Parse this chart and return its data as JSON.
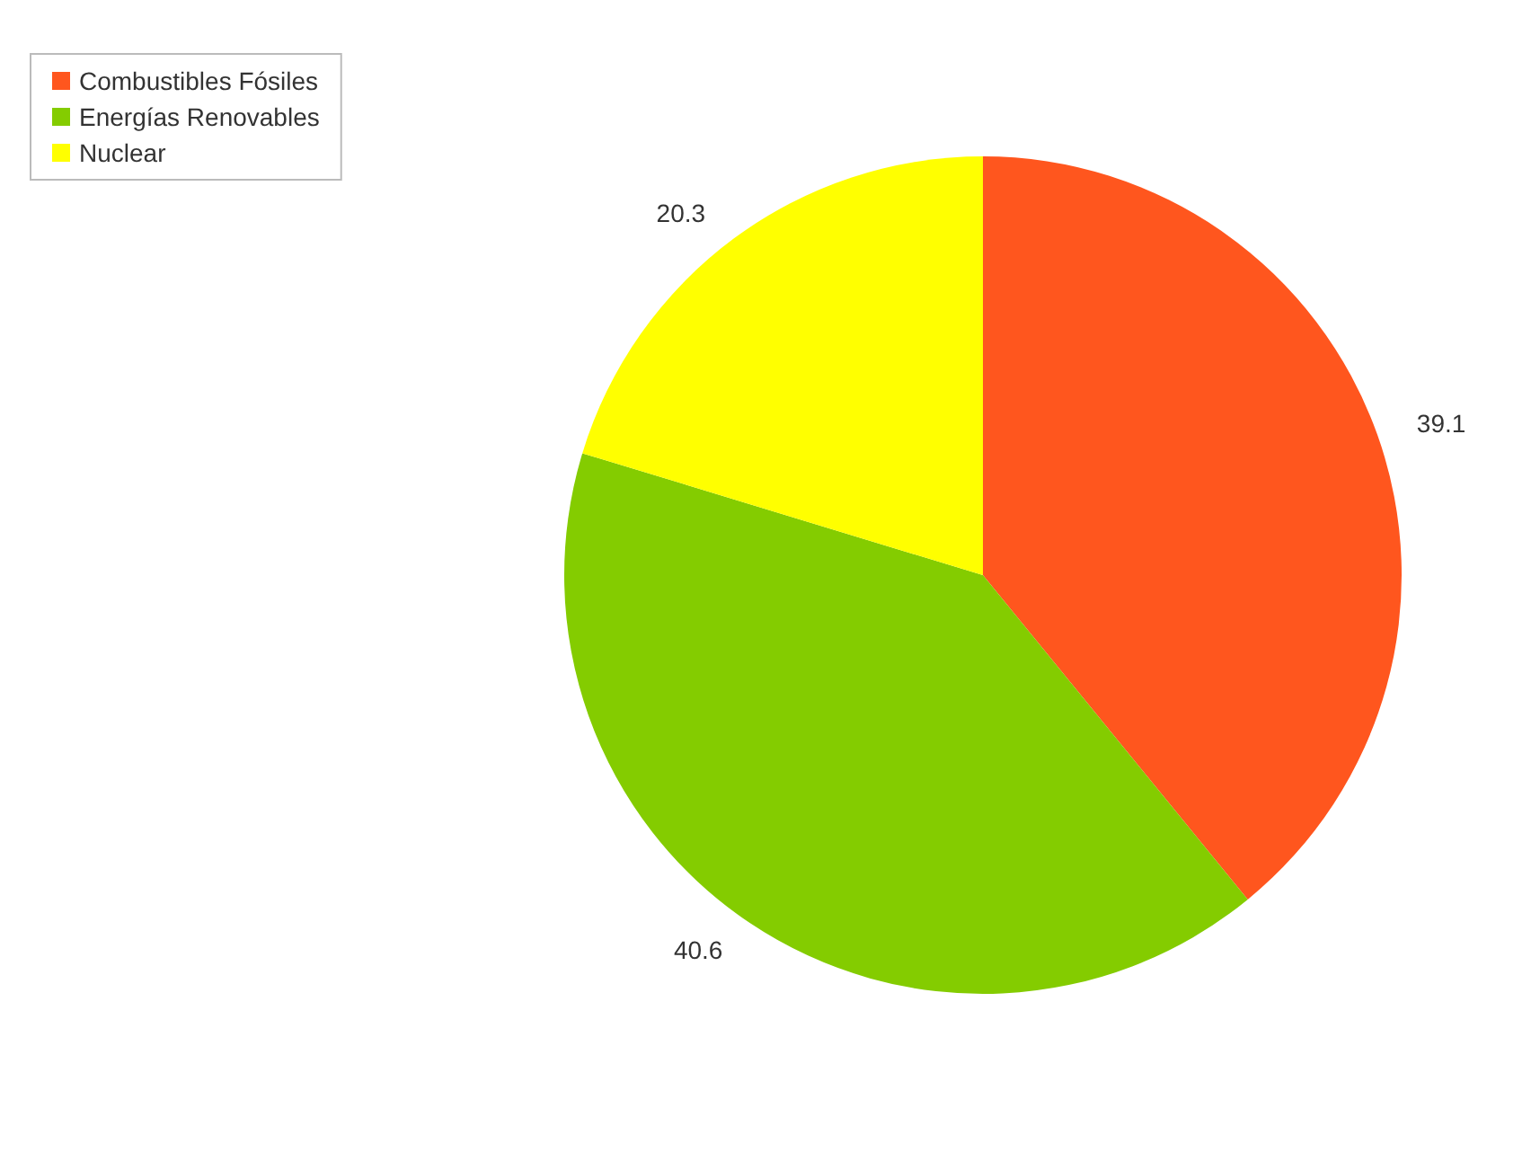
{
  "chart_data": {
    "type": "pie",
    "categories": [
      "Combustibles Fósiles",
      "Energías Renovables",
      "Nuclear"
    ],
    "values": [
      39.1,
      40.6,
      20.3
    ],
    "colors": [
      "#ff561e",
      "#84cc00",
      "#ffff00"
    ],
    "data_labels": true,
    "legend": "top left"
  }
}
